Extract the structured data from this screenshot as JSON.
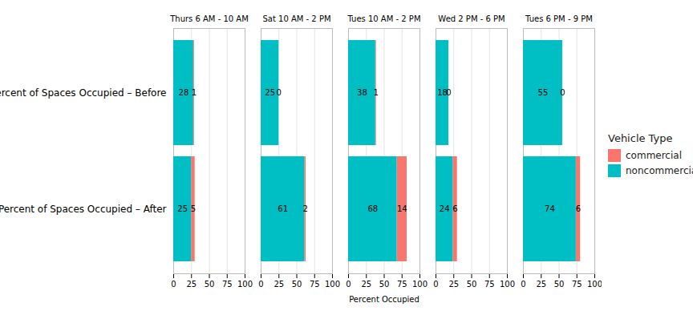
{
  "chart_data": {
    "type": "bar",
    "orientation": "horizontal",
    "stacked": true,
    "data_labels": true,
    "grid": true,
    "legend": "right",
    "legend_title": "Vehicle Type",
    "x_label": "Percent Occupied",
    "facets": [
      "Thurs 6 AM - 10 AM",
      "Sat 10 AM - 2 PM",
      "Tues 10 AM - 2 PM",
      "Wed 2 PM - 6 PM",
      "Tues 6 PM - 9 PM"
    ],
    "categories": [
      "Percent of Spaces Occupied – Before",
      "Percent of Spaces Occupied – After"
    ],
    "series": [
      {
        "name": "commercial",
        "color": "#F8766D",
        "values": [
          [
            1,
            5
          ],
          [
            0,
            2
          ],
          [
            1,
            14
          ],
          [
            0,
            6
          ],
          [
            0,
            6
          ]
        ]
      },
      {
        "name": "noncommercial",
        "color": "#00BFC4",
        "values": [
          [
            28,
            25
          ],
          [
            25,
            61
          ],
          [
            38,
            68
          ],
          [
            18,
            24
          ],
          [
            55,
            74
          ]
        ]
      }
    ],
    "xlim": [
      0,
      100
    ],
    "xticks": [
      0,
      25,
      50,
      75,
      100
    ]
  }
}
